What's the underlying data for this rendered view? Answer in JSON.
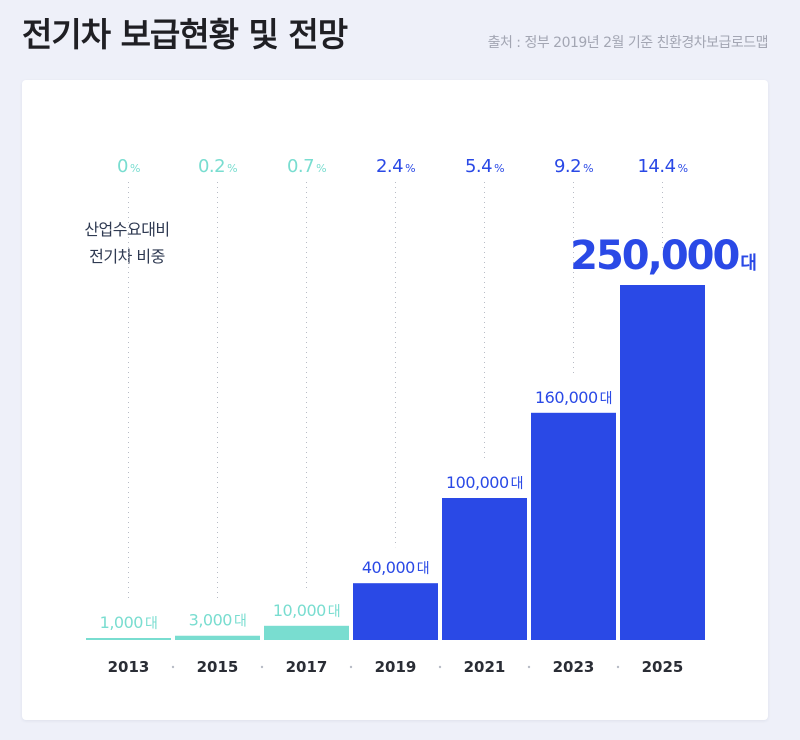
{
  "header": {
    "title": "전기차 보급현황 및 전망",
    "source": "출처 : 정부 2019년 2월 기준 친환경차보급로드맵"
  },
  "colors": {
    "past": "#79ddd0",
    "future": "#2a49e6",
    "grid": "#b8bcc6",
    "axis_label": "#2a2d35"
  },
  "chart_data": {
    "type": "bar",
    "ylabel_lines": [
      "산업수요대비",
      "전기차 비중"
    ],
    "categories": [
      "2013",
      "2015",
      "2017",
      "2019",
      "2021",
      "2023",
      "2025"
    ],
    "values": [
      1000,
      3000,
      10000,
      40000,
      100000,
      160000,
      250000
    ],
    "value_labels": [
      "1,000",
      "3,000",
      "10,000",
      "40,000",
      "100,000",
      "160,000",
      "250,000"
    ],
    "value_unit": "대",
    "share_values": [
      "0",
      "0.2",
      "0.7",
      "2.4",
      "5.4",
      "9.2",
      "14.4"
    ],
    "share_unit": "%",
    "series_color_keys": [
      "past",
      "past",
      "past",
      "future",
      "future",
      "future",
      "future"
    ],
    "ylim": [
      0,
      250000
    ],
    "grid": "dotted vertical"
  }
}
